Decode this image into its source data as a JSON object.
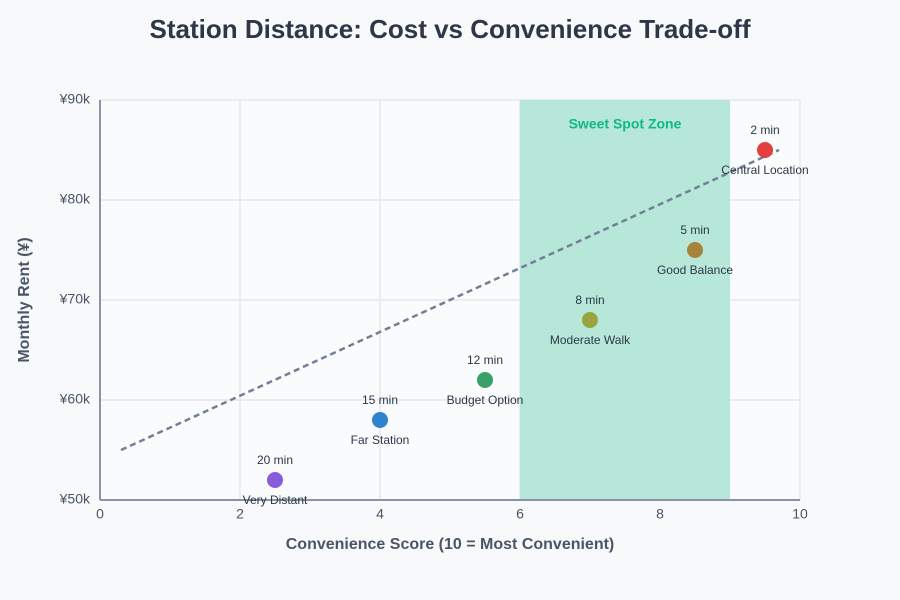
{
  "chart_data": {
    "type": "scatter",
    "title": "Station Distance: Cost vs Convenience Trade-off",
    "x_label": "Convenience Score (10 = Most Convenient)",
    "y_label": "Monthly Rent (¥)",
    "x": [
      2.5,
      4,
      5.5,
      7,
      8.5,
      9.5
    ],
    "y": [
      52000,
      58000,
      62000,
      68000,
      75000,
      85000
    ],
    "point_names": [
      "Very Distant",
      "Far Station",
      "Budget Option",
      "Moderate Walk",
      "Good Balance",
      "Central Location"
    ],
    "point_times": [
      "20 min",
      "15 min",
      "12 min",
      "8 min",
      "5 min",
      "2 min"
    ],
    "colors": [
      "#8a5cdc",
      "#3182ce",
      "#38a169",
      "#9aa33f",
      "#a8833a",
      "#e53e3e"
    ],
    "trend": {
      "x": [
        0.3,
        9.7
      ],
      "y": [
        55000,
        85000
      ],
      "color": "#718096"
    },
    "zone": {
      "label": "Sweet Spot Zone",
      "x": [
        6,
        9
      ],
      "color": "#b2e6d7",
      "label_color": "#10b981"
    },
    "xlim": [
      0,
      10
    ],
    "ylim": [
      50000,
      90000
    ],
    "xticks": [
      0,
      2,
      4,
      6,
      8,
      10
    ],
    "yticks": [
      {
        "value": 50000,
        "label": "¥50k"
      },
      {
        "value": 60000,
        "label": "¥60k"
      },
      {
        "value": 70000,
        "label": "¥70k"
      },
      {
        "value": 80000,
        "label": "¥80k"
      },
      {
        "value": 90000,
        "label": "¥90k"
      }
    ],
    "grid": true
  }
}
